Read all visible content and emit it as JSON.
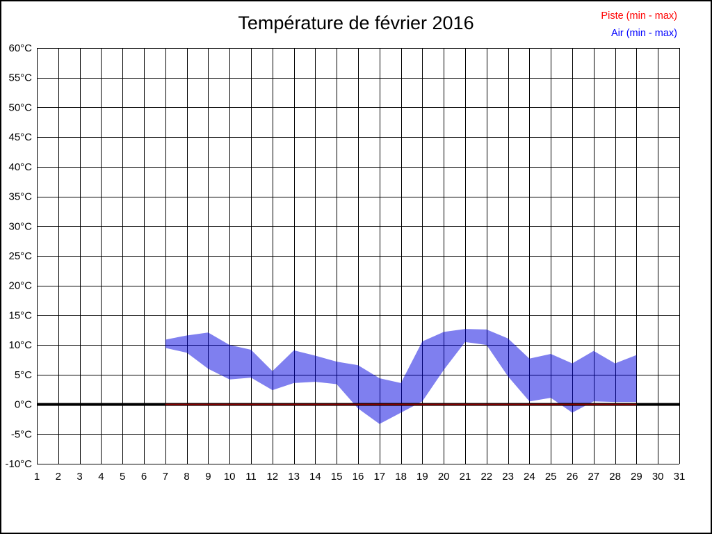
{
  "title": "Température de février 2016",
  "legend": {
    "piste_label": "Piste (min - max)",
    "air_label": "Air (min - max)",
    "piste_color": "#ff0000",
    "air_color": "#0000ff"
  },
  "colors": {
    "background": "#ffffff",
    "grid": "#000000",
    "tick_text": "#000000",
    "zero_line": "#000000",
    "piste_line": "#8b0000",
    "air_band_fill": "#0000e0",
    "air_band_opacity": 0.5
  },
  "chart_data": {
    "type": "area",
    "title": "Température de février 2016",
    "xlabel": "",
    "ylabel": "",
    "xlim": [
      1,
      31
    ],
    "ylim": [
      -10,
      60
    ],
    "ytick_step": 5,
    "grid": true,
    "legend_position": "top-right",
    "xtick_labels": [
      "1",
      "2",
      "3",
      "4",
      "5",
      "6",
      "7",
      "8",
      "9",
      "10",
      "11",
      "12",
      "13",
      "14",
      "15",
      "16",
      "17",
      "18",
      "19",
      "20",
      "21",
      "22",
      "23",
      "24",
      "25",
      "26",
      "27",
      "28",
      "29",
      "30",
      "31"
    ],
    "ytick_labels": [
      "60°C",
      "55°C",
      "50°C",
      "45°C",
      "40°C",
      "35°C",
      "30°C",
      "25°C",
      "20°C",
      "15°C",
      "10°C",
      "5°C",
      "0°C",
      "-5°C",
      "-10°C"
    ],
    "zero_line_value": 0,
    "series": [
      {
        "name": "Piste (min - max)",
        "render": "line",
        "color": "#8b0000",
        "days": [
          7,
          8,
          9,
          10,
          11,
          12,
          13,
          14,
          15,
          16,
          17,
          18,
          19,
          20,
          21,
          22,
          23,
          24,
          25,
          26,
          27,
          28,
          29
        ],
        "min": [
          0,
          0,
          0,
          0,
          0,
          0,
          0,
          0,
          0,
          0,
          0,
          0,
          0,
          0,
          0,
          0,
          0,
          0,
          0,
          0,
          0,
          0,
          0
        ],
        "max": [
          0,
          0,
          0,
          0,
          0,
          0,
          0,
          0,
          0,
          0,
          0,
          0,
          0,
          0,
          0,
          0,
          0,
          0,
          0,
          0,
          0,
          0,
          0
        ]
      },
      {
        "name": "Air (min - max)",
        "render": "band",
        "color": "#0000e0",
        "days": [
          7,
          8,
          9,
          10,
          11,
          12,
          13,
          14,
          15,
          16,
          17,
          18,
          19,
          20,
          21,
          22,
          23,
          24,
          25,
          26,
          27,
          28,
          29
        ],
        "min": [
          9.5,
          8.7,
          6.0,
          4.2,
          4.5,
          2.4,
          3.6,
          3.8,
          3.4,
          -0.7,
          -3.3,
          -1.4,
          0.5,
          5.8,
          10.5,
          10.0,
          4.7,
          0.5,
          1.1,
          -1.4,
          0.5,
          0.4,
          0.4
        ],
        "max": [
          10.9,
          11.6,
          12.1,
          10.0,
          9.2,
          5.6,
          9.1,
          8.2,
          7.2,
          6.6,
          4.4,
          3.6,
          10.6,
          12.2,
          12.7,
          12.6,
          11.1,
          7.7,
          8.5,
          6.9,
          9.0,
          6.9,
          8.3
        ]
      }
    ]
  }
}
